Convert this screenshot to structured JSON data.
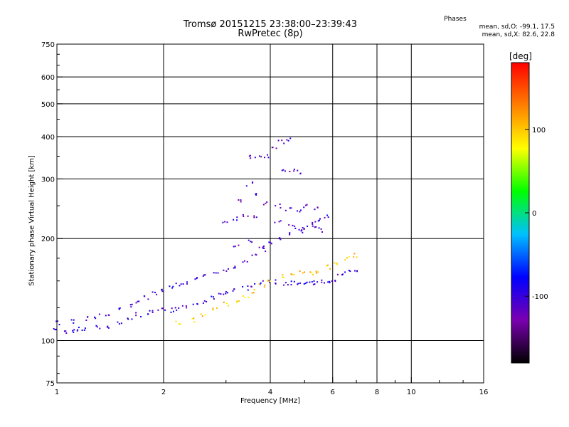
{
  "chart_data": {
    "type": "scatter",
    "title": "Tromsø 20151215 23:38:00–23:39:43",
    "subtitle": "RwPretec (8p)",
    "xlabel": "Frequency [MHz]",
    "ylabel": "Stationary phase Virtual Height [km]",
    "x_scale": "log",
    "y_scale": "log",
    "xlim": [
      1,
      16
    ],
    "ylim": [
      75,
      750
    ],
    "x_ticks": [
      1,
      2,
      4,
      6,
      8,
      10,
      16
    ],
    "y_ticks": [
      75,
      100,
      200,
      300,
      400,
      500,
      600,
      750
    ],
    "x_grid": [
      2,
      4,
      6,
      8,
      10
    ],
    "y_grid": [
      100,
      200,
      300,
      400,
      500,
      600
    ],
    "grid": true,
    "phase_stats": {
      "heading": "Phases",
      "o_mode": "mean, sd,O: -99.1, 17.5",
      "x_mode": "mean, sd,X: 82.6, 22.8"
    },
    "colorbar": {
      "label": "[deg]",
      "ticks": [
        100,
        0,
        -100
      ],
      "range": [
        -180,
        180
      ],
      "colors": [
        "#000000",
        "#7a00b0",
        "#0000ff",
        "#00c0ff",
        "#00ff00",
        "#ffff00",
        "#ff8000",
        "#ff0000"
      ]
    },
    "series": [
      {
        "trace": "lower_o",
        "phase": -100,
        "points": [
          [
            1.0,
            107
          ],
          [
            1.05,
            106
          ],
          [
            1.1,
            107
          ],
          [
            1.15,
            108
          ],
          [
            1.2,
            108
          ],
          [
            1.3,
            110
          ],
          [
            1.4,
            110
          ],
          [
            1.5,
            112
          ],
          [
            1.6,
            116
          ],
          [
            1.7,
            119
          ],
          [
            1.8,
            121
          ],
          [
            1.9,
            122
          ],
          [
            2.0,
            123
          ],
          [
            2.1,
            123
          ],
          [
            2.2,
            124
          ],
          [
            2.3,
            125
          ],
          [
            2.45,
            127
          ],
          [
            2.6,
            130
          ],
          [
            2.75,
            133
          ],
          [
            2.9,
            137
          ],
          [
            3.0,
            139
          ],
          [
            3.2,
            141
          ],
          [
            3.4,
            143
          ],
          [
            3.6,
            146
          ],
          [
            3.8,
            148
          ],
          [
            4.0,
            149
          ],
          [
            4.2,
            149
          ],
          [
            4.4,
            148
          ],
          [
            4.6,
            148
          ],
          [
            4.8,
            147
          ],
          [
            5.0,
            147
          ],
          [
            5.2,
            147
          ],
          [
            5.4,
            148
          ],
          [
            5.6,
            149
          ],
          [
            5.8,
            150
          ],
          [
            6.0,
            152
          ],
          [
            6.3,
            156
          ],
          [
            6.6,
            160
          ],
          [
            7.0,
            162
          ]
        ]
      },
      {
        "trace": "upper_o",
        "phase": -100,
        "points": [
          [
            1.0,
            113
          ],
          [
            1.1,
            114
          ],
          [
            1.2,
            116
          ],
          [
            1.3,
            118
          ],
          [
            1.4,
            120
          ],
          [
            1.5,
            123
          ],
          [
            1.6,
            127
          ],
          [
            1.7,
            131
          ],
          [
            1.8,
            134
          ],
          [
            1.9,
            137
          ],
          [
            2.0,
            140
          ],
          [
            2.1,
            143
          ],
          [
            2.2,
            146
          ],
          [
            2.3,
            149
          ],
          [
            2.45,
            152
          ],
          [
            2.6,
            155
          ],
          [
            2.8,
            158
          ],
          [
            3.0,
            162
          ],
          [
            3.2,
            166
          ],
          [
            3.4,
            172
          ],
          [
            3.6,
            178
          ],
          [
            3.8,
            186
          ],
          [
            4.0,
            193
          ],
          [
            4.2,
            200
          ],
          [
            4.5,
            205
          ],
          [
            4.8,
            212
          ],
          [
            5.0,
            217
          ],
          [
            5.3,
            222
          ],
          [
            5.5,
            226
          ],
          [
            5.8,
            232
          ]
        ]
      },
      {
        "trace": "x_mode",
        "phase": 100,
        "points": [
          [
            2.2,
            113
          ],
          [
            2.4,
            115
          ],
          [
            2.6,
            118
          ],
          [
            2.8,
            124
          ],
          [
            3.0,
            128
          ],
          [
            3.2,
            131
          ],
          [
            3.4,
            134
          ],
          [
            3.6,
            140
          ],
          [
            3.8,
            145
          ],
          [
            4.0,
            152
          ],
          [
            4.3,
            155
          ],
          [
            4.6,
            157
          ],
          [
            4.9,
            158
          ],
          [
            5.2,
            158
          ],
          [
            5.5,
            158
          ],
          [
            5.8,
            165
          ],
          [
            6.2,
            170
          ],
          [
            6.6,
            175
          ],
          [
            7.0,
            178
          ]
        ]
      },
      {
        "trace": "spread_layers",
        "phase": -110,
        "points": [
          [
            3.0,
            225
          ],
          [
            3.2,
            230
          ],
          [
            3.4,
            236
          ],
          [
            3.6,
            230
          ],
          [
            3.2,
            190
          ],
          [
            3.5,
            195
          ],
          [
            3.8,
            188
          ],
          [
            3.3,
            260
          ],
          [
            3.6,
            270
          ],
          [
            3.9,
            255
          ],
          [
            3.5,
            290
          ],
          [
            3.5,
            350
          ],
          [
            3.7,
            352
          ],
          [
            3.9,
            352
          ],
          [
            4.1,
            370
          ],
          [
            4.3,
            385
          ],
          [
            4.5,
            390
          ],
          [
            4.4,
            320
          ],
          [
            4.6,
            318
          ],
          [
            4.8,
            315
          ],
          [
            4.2,
            250
          ],
          [
            4.5,
            245
          ],
          [
            4.8,
            240
          ],
          [
            5.0,
            250
          ],
          [
            5.4,
            245
          ],
          [
            4.2,
            225
          ],
          [
            4.6,
            220
          ],
          [
            5.0,
            210
          ],
          [
            5.3,
            215
          ],
          [
            5.6,
            212
          ]
        ]
      }
    ]
  }
}
